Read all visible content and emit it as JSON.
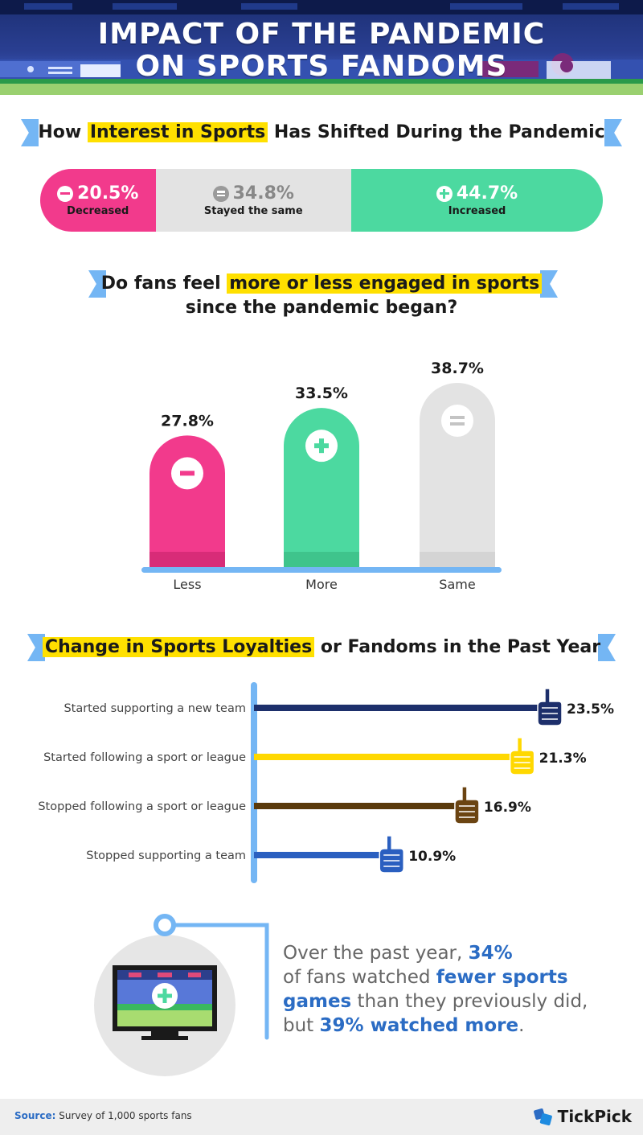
{
  "header": {
    "title_line1": "IMPACT OF THE PANDEMIC",
    "title_line2": "ON SPORTS FANDOMS"
  },
  "interest": {
    "title_pre": "How ",
    "title_highlight": "Interest in Sports",
    "title_post": " Has Shifted During the Pandemic"
  },
  "engagement": {
    "title_pre": "Do fans feel ",
    "title_highlight": "more or less engaged in sports",
    "title_line2": "since the pandemic began?"
  },
  "loyalty": {
    "title_highlight": "Change in Sports Loyalties",
    "title_post": " or Fandoms in the Past Year"
  },
  "blurb": {
    "p1": "Over the past year, ",
    "b1": "34%",
    "p2": " of fans watched ",
    "b2": "fewer sports games",
    "p3": " than they previously did, but ",
    "b3": "39% watched more",
    "p4": "."
  },
  "footer": {
    "source_label": "Source:",
    "source_text": " Survey of 1,000 sports fans",
    "brand": "TickPick"
  },
  "colors": {
    "pink": "#f23a8c",
    "green": "#4cd9a0",
    "gray": "#e3e3e3",
    "blue_accent": "#74b6f4",
    "highlight": "#ffe000",
    "navy": "#1d2f6b",
    "yellow": "#ffd800",
    "brown": "#5a3a0c",
    "royal": "#2a5fc0"
  },
  "chart_data": [
    {
      "type": "bar",
      "orientation": "stacked-horizontal",
      "title": "How Interest in Sports Has Shifted During the Pandemic",
      "categories": [
        "Decreased",
        "Stayed the same",
        "Increased"
      ],
      "values": [
        20.5,
        34.8,
        44.7
      ],
      "labels": [
        "20.5%",
        "34.8%",
        "44.7%"
      ],
      "icons": [
        "minus-icon",
        "equals-icon",
        "plus-icon"
      ]
    },
    {
      "type": "bar",
      "title": "Do fans feel more or less engaged in sports since the pandemic began?",
      "categories": [
        "Less",
        "More",
        "Same"
      ],
      "values": [
        27.8,
        33.5,
        38.7
      ],
      "labels": [
        "27.8%",
        "33.5%",
        "38.7%"
      ],
      "icons": [
        "minus-icon",
        "plus-icon",
        "equals-icon"
      ],
      "ylim": [
        0,
        40
      ]
    },
    {
      "type": "bar",
      "orientation": "horizontal",
      "title": "Change in Sports Loyalties or Fandoms in the Past Year",
      "categories": [
        "Started supporting a new team",
        "Started following a sport or league",
        "Stopped following a sport or league",
        "Stopped supporting a team"
      ],
      "values": [
        23.5,
        21.3,
        16.9,
        10.9
      ],
      "labels": [
        "23.5%",
        "21.3%",
        "16.9%",
        "10.9%"
      ],
      "icons": [
        "foam-finger-icon",
        "foam-finger-icon",
        "foam-finger-icon",
        "foam-finger-icon"
      ],
      "xlim": [
        0,
        25
      ]
    }
  ]
}
